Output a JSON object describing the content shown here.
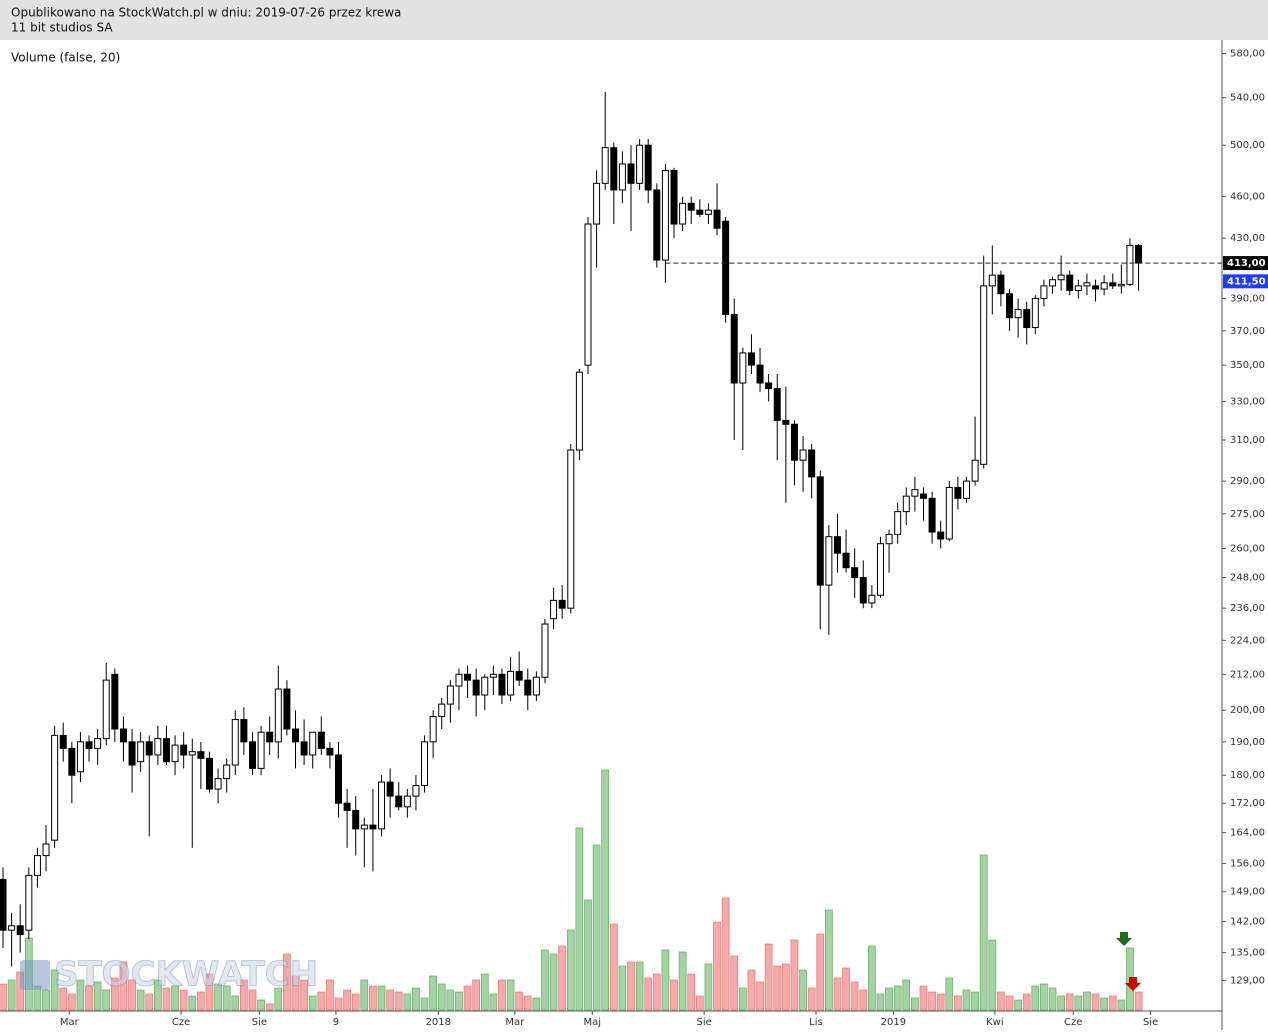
{
  "header": {
    "published": "Opublikowano na StockWatch.pl w dniu: 2019-07-26 przez krewa",
    "instrument": "11 bit studios SA"
  },
  "watermark": "STOCKWATCH",
  "chart_data": {
    "type": "candlestick",
    "indicator_label": "Volume (false, 20)",
    "log_scale": true,
    "ylim": [
      123,
      593
    ],
    "yticks": [
      {
        "value": 580,
        "label": "580,00"
      },
      {
        "value": 540,
        "label": "540,00"
      },
      {
        "value": 500,
        "label": "500,00"
      },
      {
        "value": 460,
        "label": "460,00"
      },
      {
        "value": 430,
        "label": "430,00"
      },
      {
        "value": 390,
        "label": "390,00"
      },
      {
        "value": 370,
        "label": "370,00"
      },
      {
        "value": 350,
        "label": "350,00"
      },
      {
        "value": 330,
        "label": "330,00"
      },
      {
        "value": 310,
        "label": "310,00"
      },
      {
        "value": 290,
        "label": "290,00"
      },
      {
        "value": 275,
        "label": "275,00"
      },
      {
        "value": 260,
        "label": "260,00"
      },
      {
        "value": 248,
        "label": "248,00"
      },
      {
        "value": 236,
        "label": "236,00"
      },
      {
        "value": 224,
        "label": "224,00"
      },
      {
        "value": 212,
        "label": "212,00"
      },
      {
        "value": 200,
        "label": "200,00"
      },
      {
        "value": 190,
        "label": "190,00"
      },
      {
        "value": 180,
        "label": "180,00"
      },
      {
        "value": 172,
        "label": "172,00"
      },
      {
        "value": 164,
        "label": "164,00"
      },
      {
        "value": 156,
        "label": "156,00"
      },
      {
        "value": 149,
        "label": "149,00"
      },
      {
        "value": 142,
        "label": "142,00"
      },
      {
        "value": 135,
        "label": "135,00"
      },
      {
        "value": 129,
        "label": "129,00"
      }
    ],
    "xlim": [
      -0.35,
      141.7
    ],
    "xticks": [
      {
        "value": 7.7,
        "label": "Mar"
      },
      {
        "value": 20.7,
        "label": "Cze"
      },
      {
        "value": 29.8,
        "label": "Sie"
      },
      {
        "value": 38.7,
        "label": "9"
      },
      {
        "value": 50.6,
        "label": "2018"
      },
      {
        "value": 59.5,
        "label": "Mar"
      },
      {
        "value": 68.5,
        "label": "Maj"
      },
      {
        "value": 81.5,
        "label": "Sie"
      },
      {
        "value": 94.5,
        "label": "Lis"
      },
      {
        "value": 103.5,
        "label": "2019"
      },
      {
        "value": 115.3,
        "label": "Kwi"
      },
      {
        "value": 124.4,
        "label": "Cze"
      },
      {
        "value": 133.4,
        "label": "Sie"
      }
    ],
    "price_line": {
      "value": 413,
      "label": "413,00",
      "color": "#000000"
    },
    "last_price": {
      "value": 411.5,
      "label": "411,50",
      "color": "#1e3cff"
    },
    "up_color": "#ffffff",
    "down_color": "#000000",
    "volume_up_color": "#a3d3a3",
    "volume_down_color": "#f7a8a8",
    "candles": [
      [
        152,
        155,
        136,
        140
      ],
      [
        140,
        144,
        132,
        141
      ],
      [
        141,
        146,
        135,
        139
      ],
      [
        140,
        155,
        138,
        153
      ],
      [
        153,
        160,
        150,
        158
      ],
      [
        158,
        166,
        154,
        161
      ],
      [
        162,
        195,
        160,
        192
      ],
      [
        192,
        196,
        184,
        188
      ],
      [
        188,
        190,
        172,
        180
      ],
      [
        181,
        193,
        178,
        190
      ],
      [
        190,
        192,
        184,
        188
      ],
      [
        188,
        194,
        183,
        191
      ],
      [
        191,
        216,
        189,
        210
      ],
      [
        212,
        214,
        190,
        194
      ],
      [
        194,
        198,
        184,
        190
      ],
      [
        190,
        194,
        175,
        183
      ],
      [
        184,
        193,
        181,
        190
      ],
      [
        190,
        192,
        163,
        186
      ],
      [
        186,
        195,
        183,
        191
      ],
      [
        191,
        195,
        183,
        184
      ],
      [
        184,
        192,
        180,
        189
      ],
      [
        189,
        193,
        182,
        186
      ],
      [
        186,
        191,
        160,
        187
      ],
      [
        187,
        190,
        176,
        185
      ],
      [
        185,
        187,
        175,
        176
      ],
      [
        176,
        182,
        172,
        179
      ],
      [
        179,
        185,
        175,
        183
      ],
      [
        183,
        200,
        180,
        197
      ],
      [
        197,
        201,
        186,
        190
      ],
      [
        190,
        193,
        180,
        182
      ],
      [
        182,
        195,
        180,
        193
      ],
      [
        193,
        198,
        186,
        190
      ],
      [
        190,
        215,
        185,
        207
      ],
      [
        207,
        210,
        192,
        194
      ],
      [
        194,
        200,
        182,
        190
      ],
      [
        190,
        197,
        183,
        186
      ],
      [
        186,
        192,
        182,
        193
      ],
      [
        193,
        198,
        186,
        188
      ],
      [
        188,
        190,
        182,
        186
      ],
      [
        186,
        190,
        168,
        172
      ],
      [
        172,
        176,
        160,
        170
      ],
      [
        170,
        174,
        158,
        165
      ],
      [
        165,
        168,
        155,
        166
      ],
      [
        166,
        176,
        154,
        165
      ],
      [
        165,
        180,
        163,
        178
      ],
      [
        178,
        182,
        168,
        174
      ],
      [
        174,
        178,
        170,
        171
      ],
      [
        171,
        176,
        168,
        174
      ],
      [
        174,
        180,
        170,
        177
      ],
      [
        177,
        192,
        175,
        190
      ],
      [
        190,
        200,
        185,
        198
      ],
      [
        198,
        204,
        194,
        202
      ],
      [
        202,
        210,
        196,
        208
      ],
      [
        208,
        214,
        200,
        212
      ],
      [
        212,
        215,
        204,
        210
      ],
      [
        210,
        214,
        198,
        205
      ],
      [
        205,
        212,
        200,
        211
      ],
      [
        211,
        215,
        205,
        212
      ],
      [
        212,
        214,
        202,
        205
      ],
      [
        205,
        218,
        203,
        213
      ],
      [
        213,
        220,
        208,
        210
      ],
      [
        210,
        214,
        200,
        205
      ],
      [
        205,
        213,
        203,
        211
      ],
      [
        211,
        232,
        209,
        230
      ],
      [
        232,
        244,
        228,
        239
      ],
      [
        239,
        245,
        232,
        236
      ],
      [
        236,
        308,
        234,
        305
      ],
      [
        305,
        348,
        300,
        346
      ],
      [
        350,
        445,
        345,
        440
      ],
      [
        440,
        480,
        410,
        470
      ],
      [
        470,
        545,
        465,
        498
      ],
      [
        498,
        502,
        440,
        465
      ],
      [
        465,
        495,
        455,
        485
      ],
      [
        485,
        500,
        435,
        470
      ],
      [
        470,
        505,
        465,
        500
      ],
      [
        500,
        505,
        455,
        465
      ],
      [
        465,
        470,
        410,
        415
      ],
      [
        415,
        485,
        400,
        480
      ],
      [
        480,
        482,
        430,
        440
      ],
      [
        440,
        460,
        435,
        455
      ],
      [
        455,
        460,
        440,
        450
      ],
      [
        450,
        458,
        445,
        447
      ],
      [
        447,
        455,
        440,
        450
      ],
      [
        450,
        470,
        432,
        437
      ],
      [
        442,
        445,
        375,
        380
      ],
      [
        380,
        390,
        310,
        340
      ],
      [
        340,
        360,
        305,
        357
      ],
      [
        357,
        368,
        345,
        350
      ],
      [
        350,
        360,
        335,
        340
      ],
      [
        340,
        345,
        330,
        337
      ],
      [
        337,
        345,
        300,
        320
      ],
      [
        320,
        338,
        280,
        318
      ],
      [
        318,
        320,
        288,
        300
      ],
      [
        300,
        312,
        285,
        305
      ],
      [
        305,
        308,
        282,
        292
      ],
      [
        292,
        295,
        228,
        245
      ],
      [
        245,
        270,
        226,
        265
      ],
      [
        265,
        275,
        250,
        258
      ],
      [
        258,
        268,
        250,
        252
      ],
      [
        252,
        260,
        240,
        248
      ],
      [
        248,
        255,
        236,
        238
      ],
      [
        238,
        245,
        236,
        241
      ],
      [
        241,
        265,
        240,
        262
      ],
      [
        262,
        268,
        250,
        266
      ],
      [
        266,
        280,
        262,
        276
      ],
      [
        276,
        287,
        270,
        283
      ],
      [
        283,
        292,
        276,
        286
      ],
      [
        284,
        287,
        272,
        282
      ],
      [
        282,
        285,
        262,
        267
      ],
      [
        267,
        272,
        260,
        264
      ],
      [
        264,
        290,
        263,
        287
      ],
      [
        287,
        292,
        277,
        282
      ],
      [
        282,
        292,
        280,
        290
      ],
      [
        290,
        322,
        288,
        300
      ],
      [
        298,
        418,
        296,
        398
      ],
      [
        398,
        425,
        380,
        405
      ],
      [
        405,
        408,
        385,
        393
      ],
      [
        393,
        396,
        370,
        378
      ],
      [
        378,
        390,
        366,
        383
      ],
      [
        383,
        388,
        362,
        372
      ],
      [
        372,
        392,
        368,
        390
      ],
      [
        390,
        402,
        385,
        398
      ],
      [
        398,
        404,
        393,
        402
      ],
      [
        402,
        418,
        395,
        405
      ],
      [
        405,
        408,
        392,
        395
      ],
      [
        395,
        402,
        390,
        398
      ],
      [
        398,
        406,
        392,
        400
      ],
      [
        398,
        402,
        388,
        396
      ],
      [
        396,
        405,
        392,
        400
      ],
      [
        400,
        406,
        396,
        398
      ],
      [
        398,
        412,
        393,
        399
      ],
      [
        399,
        430,
        398,
        425
      ],
      [
        425,
        426,
        395,
        413
      ]
    ],
    "volume": [
      26,
      30,
      38,
      72,
      24,
      20,
      40,
      22,
      16,
      30,
      24,
      28,
      20,
      32,
      48,
      30,
      20,
      16,
      30,
      22,
      24,
      20,
      14,
      18,
      36,
      26,
      24,
      14,
      30,
      20,
      10,
      6,
      22,
      56,
      34,
      30,
      14,
      18,
      30,
      12,
      20,
      16,
      30,
      24,
      24,
      20,
      18,
      16,
      22,
      12,
      34,
      26,
      20,
      18,
      24,
      30,
      36,
      16,
      30,
      30,
      18,
      14,
      12,
      60,
      56,
      64,
      80,
      182,
      110,
      165,
      240,
      86,
      44,
      48,
      48,
      32,
      36,
      60,
      30,
      58,
      36,
      14,
      46,
      88,
      112,
      54,
      22,
      40,
      28,
      66,
      44,
      46,
      70,
      40,
      22,
      76,
      100,
      32,
      42,
      28,
      20,
      64,
      16,
      22,
      24,
      30,
      12,
      24,
      18,
      16,
      32,
      14,
      20,
      18,
      155,
      70,
      18,
      14,
      10,
      16,
      24,
      26,
      22,
      14,
      16,
      14,
      18,
      16,
      12,
      14,
      10,
      62,
      18
    ]
  }
}
